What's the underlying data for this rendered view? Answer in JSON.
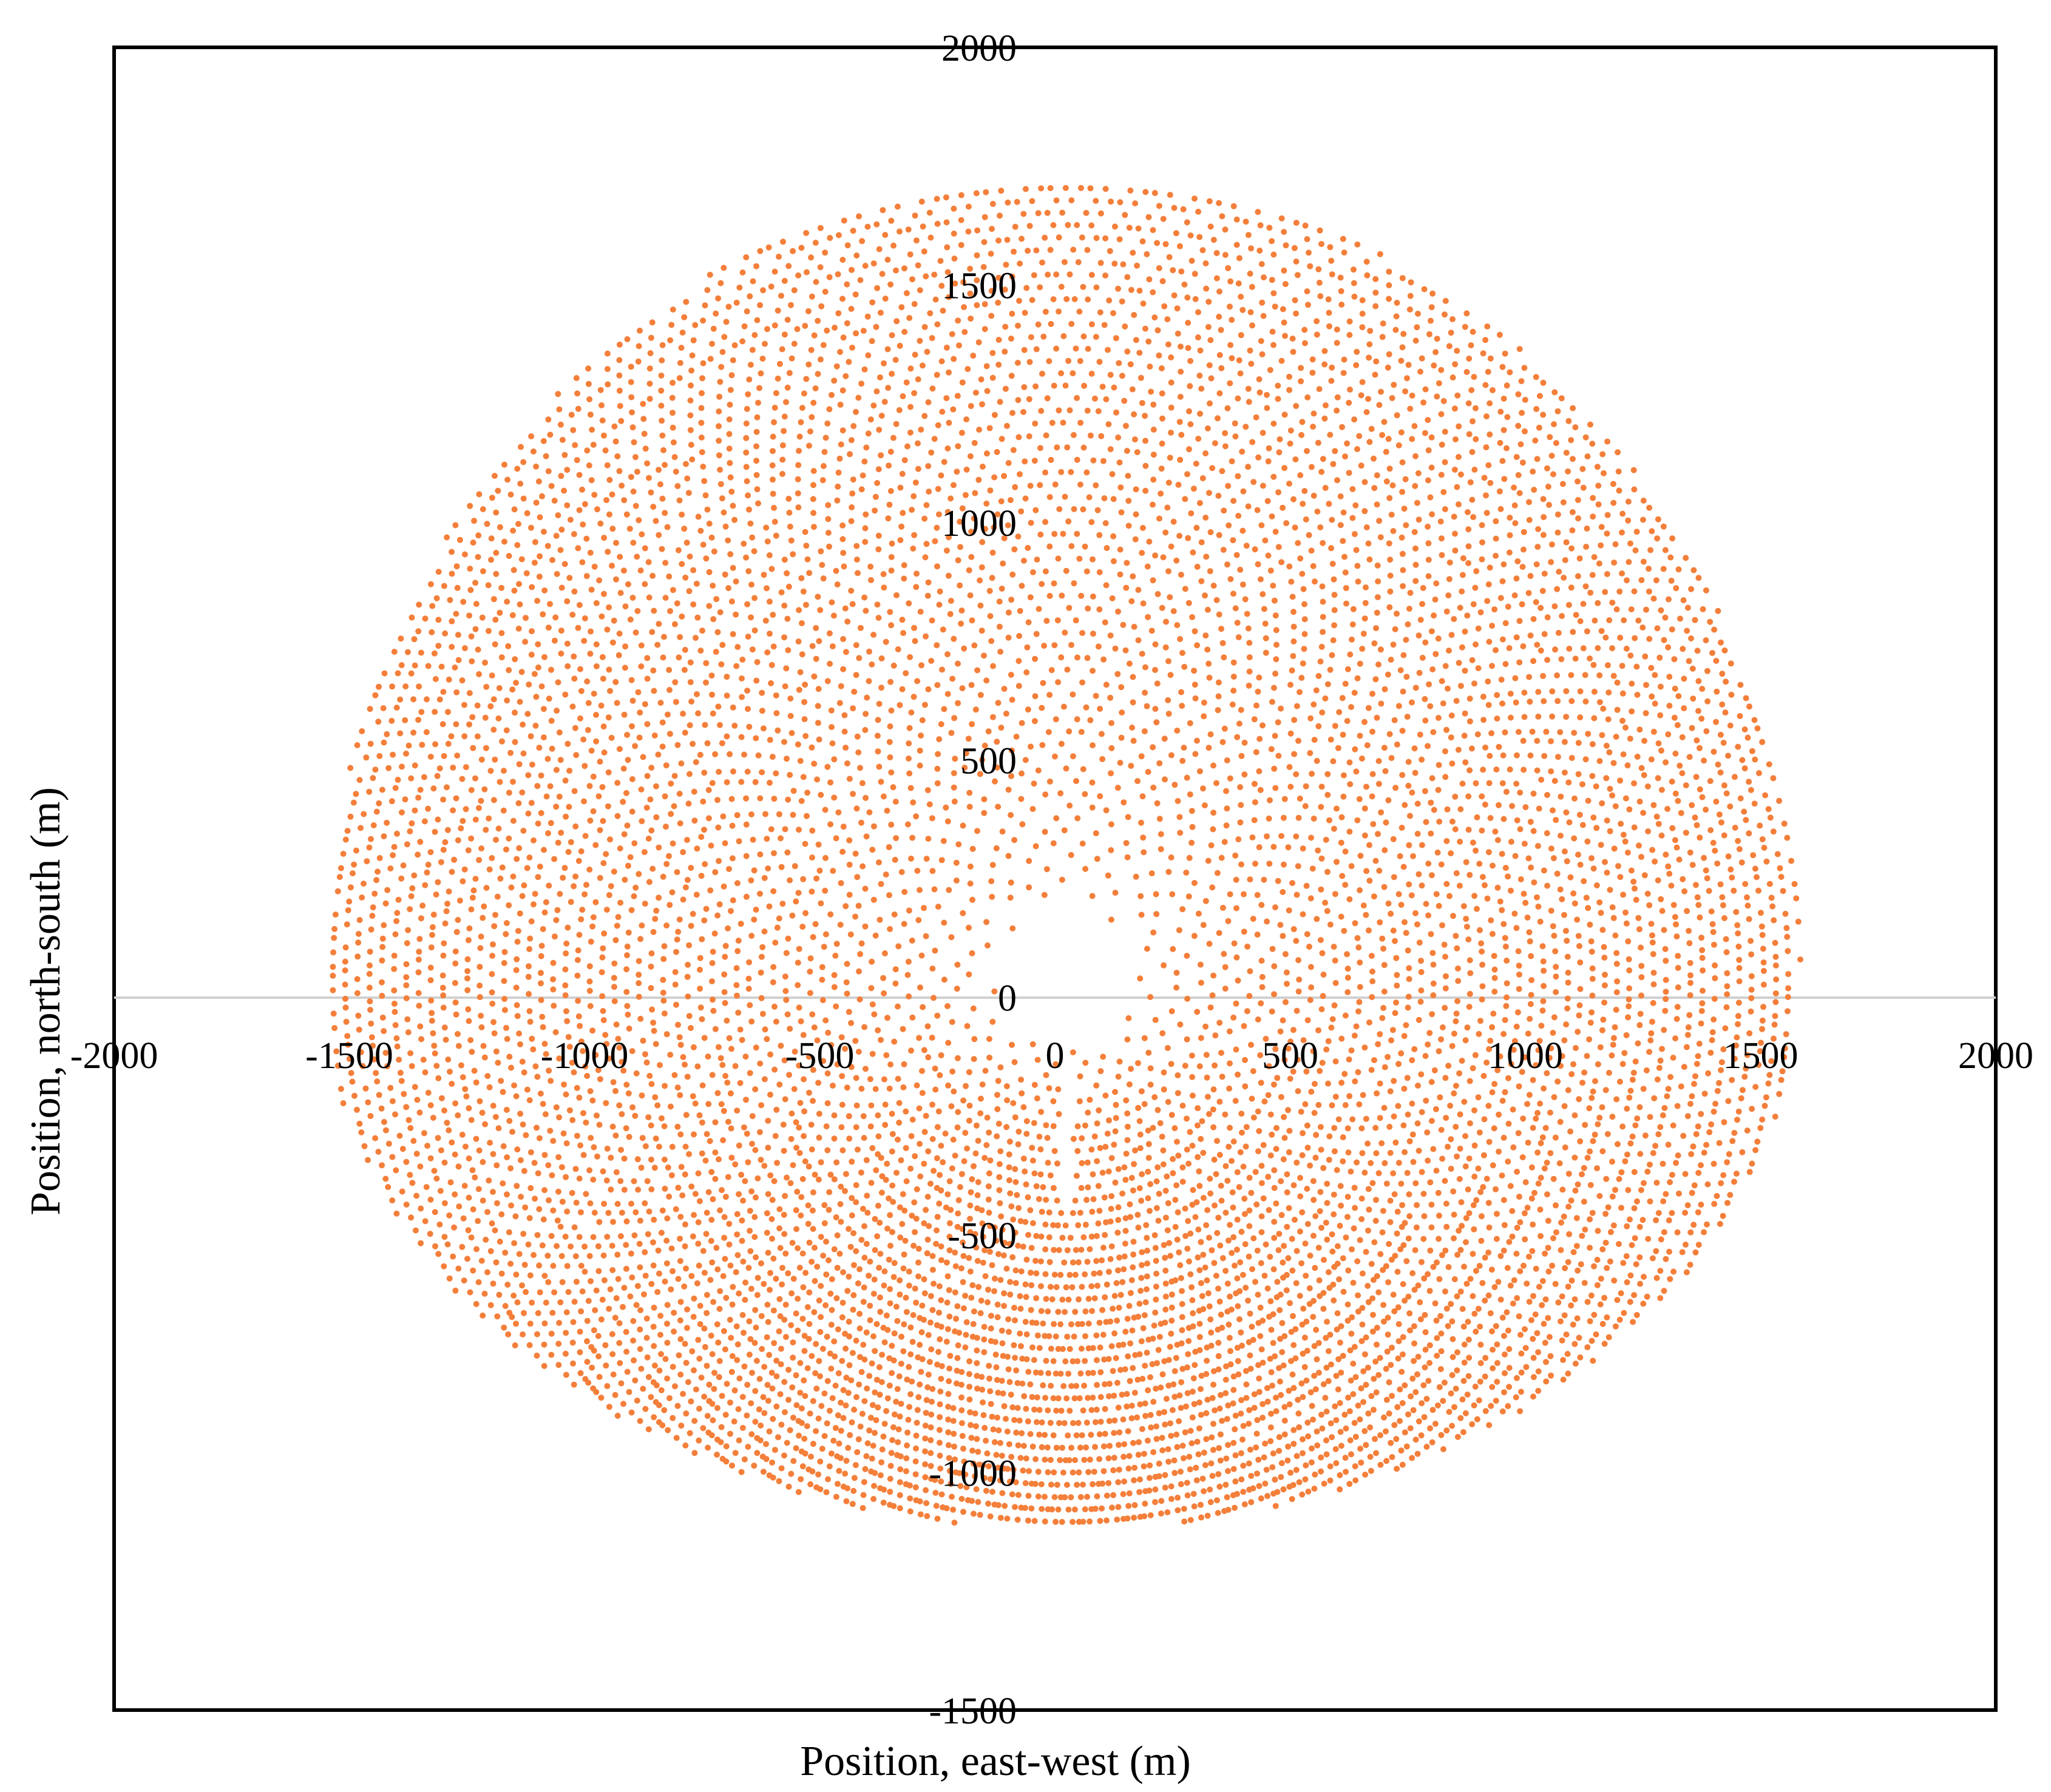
{
  "chart_data": {
    "type": "scatter",
    "title": "",
    "xlabel": "Position, east-west (m)",
    "ylabel": "Position, north-south (m)",
    "xlim": [
      -2000,
      2000
    ],
    "ylim": [
      -1500,
      2000
    ],
    "x_ticks": [
      "-2000",
      "-1500",
      "-1000",
      "-500",
      "0",
      "500",
      "1000",
      "1500",
      "2000"
    ],
    "y_ticks": [
      "2000",
      "1500",
      "1000",
      "500",
      "0",
      "-500",
      "-1000",
      "-1500"
    ],
    "grid": false,
    "legend": "none",
    "series": [
      {
        "marker_color": "#F47F3A",
        "layout": "radial-staggered heliostat field",
        "center": [
          25,
          40
        ],
        "inner_radius": 135,
        "outer_radius_north": 1690,
        "outer_radius_south": 1160,
        "outer_radius_east": 1560,
        "outer_radius_west": 1580,
        "ring_spacing": 26,
        "south_corridor_x": 25,
        "south_corridor_y": [
          -440,
          -120
        ]
      }
    ]
  }
}
